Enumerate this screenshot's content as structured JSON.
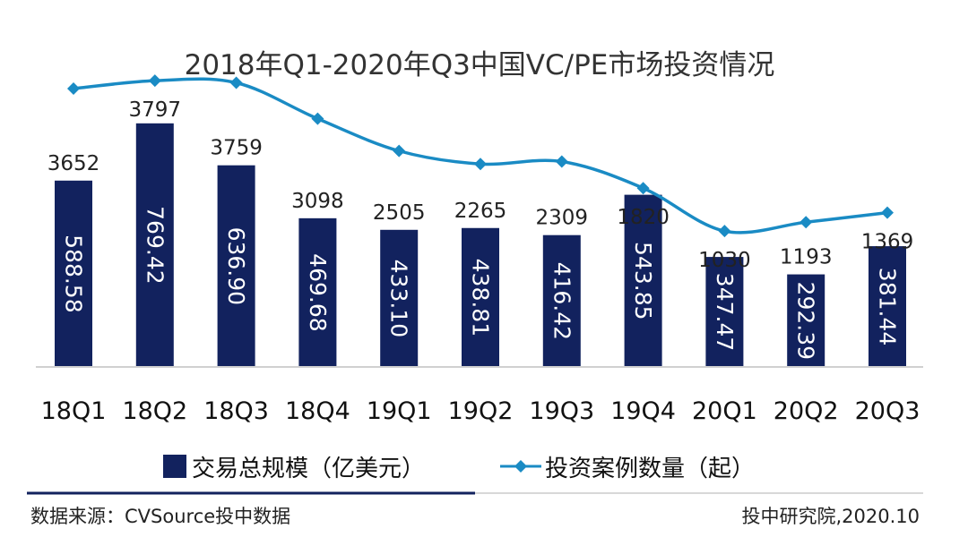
{
  "chart_data": {
    "type": "bar",
    "title": "2018年Q1-2020年Q3中国VC/PE市场投资情况",
    "categories": [
      "18Q1",
      "18Q2",
      "18Q3",
      "18Q4",
      "19Q1",
      "19Q2",
      "19Q3",
      "19Q4",
      "20Q1",
      "20Q2",
      "20Q3"
    ],
    "series": [
      {
        "name": "交易总规模（亿美元）",
        "type": "bar",
        "values": [
          588.58,
          769.42,
          636.9,
          469.68,
          433.1,
          438.81,
          416.42,
          543.85,
          347.47,
          292.39,
          381.44
        ],
        "labels": [
          "588.58",
          "769.42",
          "636.90",
          "469.68",
          "433.10",
          "438.81",
          "416.42",
          "543.85",
          "347.47",
          "292.39",
          "381.44"
        ],
        "color": "#12225e"
      },
      {
        "name": "投资案例数量（起）",
        "type": "line",
        "values": [
          3652,
          3797,
          3759,
          3098,
          2505,
          2265,
          2309,
          1820,
          1030,
          1193,
          1369
        ],
        "color": "#1a8bc4"
      }
    ],
    "legend_position": "bottom",
    "grid": false
  },
  "footer": {
    "source": "数据来源：CVSource投中数据",
    "credit": "投中研究院,2020.10"
  }
}
